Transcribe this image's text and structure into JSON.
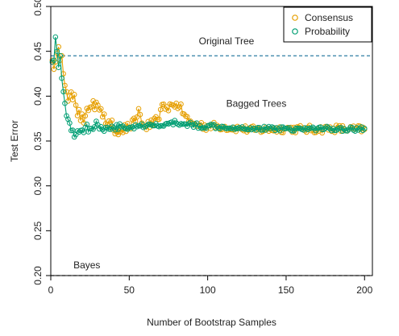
{
  "chart_data": {
    "type": "line",
    "xlabel": "Number of Bootstrap Samples",
    "ylabel": "Test Error",
    "xlim": [
      0,
      205
    ],
    "ylim": [
      0.2,
      0.5
    ],
    "x_ticks": [
      0,
      50,
      100,
      150,
      200
    ],
    "y_ticks": [
      0.2,
      0.25,
      0.3,
      0.35,
      0.4,
      0.45,
      0.5
    ],
    "x_tick_labels": [
      "0",
      "50",
      "100",
      "150",
      "200"
    ],
    "y_tick_labels": [
      "0.20",
      "0.25",
      "0.30",
      "0.35",
      "0.40",
      "0.45",
      "0.50"
    ],
    "grid": false,
    "legend_position": "top-right",
    "series": [
      {
        "name": "Consensus",
        "color": "#E69F00",
        "marker": "open-circle",
        "anchors": [
          [
            1,
            0.44
          ],
          [
            2,
            0.43
          ],
          [
            3,
            0.438
          ],
          [
            4,
            0.448
          ],
          [
            5,
            0.455
          ],
          [
            6,
            0.44
          ],
          [
            7,
            0.445
          ],
          [
            8,
            0.425
          ],
          [
            9,
            0.412
          ],
          [
            10,
            0.405
          ],
          [
            12,
            0.4
          ],
          [
            14,
            0.396
          ],
          [
            16,
            0.39
          ],
          [
            18,
            0.385
          ],
          [
            20,
            0.38
          ],
          [
            22,
            0.378
          ],
          [
            24,
            0.384
          ],
          [
            26,
            0.388
          ],
          [
            28,
            0.385
          ],
          [
            30,
            0.39
          ],
          [
            32,
            0.386
          ],
          [
            34,
            0.38
          ],
          [
            36,
            0.368
          ],
          [
            38,
            0.365
          ],
          [
            40,
            0.362
          ],
          [
            45,
            0.363
          ],
          [
            50,
            0.365
          ],
          [
            54,
            0.372
          ],
          [
            56,
            0.386
          ],
          [
            58,
            0.37
          ],
          [
            60,
            0.366
          ],
          [
            65,
            0.368
          ],
          [
            68,
            0.374
          ],
          [
            70,
            0.385
          ],
          [
            74,
            0.388
          ],
          [
            78,
            0.39
          ],
          [
            80,
            0.392
          ],
          [
            82,
            0.388
          ],
          [
            85,
            0.38
          ],
          [
            88,
            0.372
          ],
          [
            90,
            0.37
          ],
          [
            95,
            0.368
          ],
          [
            100,
            0.367
          ],
          [
            110,
            0.366
          ],
          [
            120,
            0.364
          ],
          [
            130,
            0.362
          ],
          [
            140,
            0.363
          ],
          [
            150,
            0.364
          ],
          [
            160,
            0.363
          ],
          [
            170,
            0.363
          ],
          [
            180,
            0.364
          ],
          [
            190,
            0.363
          ],
          [
            200,
            0.363
          ]
        ],
        "noise": 0.0045
      },
      {
        "name": "Probability",
        "color": "#009E73",
        "marker": "open-circle",
        "anchors": [
          [
            1,
            0.438
          ],
          [
            2,
            0.44
          ],
          [
            3,
            0.466
          ],
          [
            4,
            0.45
          ],
          [
            5,
            0.432
          ],
          [
            6,
            0.445
          ],
          [
            7,
            0.42
          ],
          [
            8,
            0.405
          ],
          [
            9,
            0.392
          ],
          [
            10,
            0.378
          ],
          [
            12,
            0.37
          ],
          [
            14,
            0.362
          ],
          [
            16,
            0.357
          ],
          [
            18,
            0.36
          ],
          [
            20,
            0.362
          ],
          [
            22,
            0.365
          ],
          [
            25,
            0.364
          ],
          [
            28,
            0.366
          ],
          [
            30,
            0.368
          ],
          [
            32,
            0.366
          ],
          [
            35,
            0.365
          ],
          [
            40,
            0.365
          ],
          [
            45,
            0.366
          ],
          [
            50,
            0.365
          ],
          [
            55,
            0.366
          ],
          [
            60,
            0.366
          ],
          [
            65,
            0.367
          ],
          [
            70,
            0.367
          ],
          [
            75,
            0.369
          ],
          [
            80,
            0.37
          ],
          [
            85,
            0.369
          ],
          [
            90,
            0.368
          ],
          [
            95,
            0.367
          ],
          [
            100,
            0.367
          ],
          [
            110,
            0.366
          ],
          [
            120,
            0.365
          ],
          [
            130,
            0.364
          ],
          [
            140,
            0.364
          ],
          [
            150,
            0.364
          ],
          [
            160,
            0.363
          ],
          [
            170,
            0.364
          ],
          [
            180,
            0.364
          ],
          [
            190,
            0.363
          ],
          [
            200,
            0.364
          ]
        ],
        "noise": 0.0025
      }
    ],
    "reference_lines": [
      {
        "name": "Original Tree",
        "y": 0.445,
        "color": "#2E7FA3",
        "style": "dashed"
      },
      {
        "name": "Bayes",
        "y": 0.2,
        "color": "#333333",
        "style": "dashed"
      }
    ],
    "annotations": [
      {
        "text": "Original Tree",
        "x": 112,
        "y": 0.458
      },
      {
        "text": "Bagged Trees",
        "x": 131,
        "y": 0.388
      },
      {
        "text": "Bayes",
        "x": 23,
        "y": 0.208
      }
    ]
  }
}
